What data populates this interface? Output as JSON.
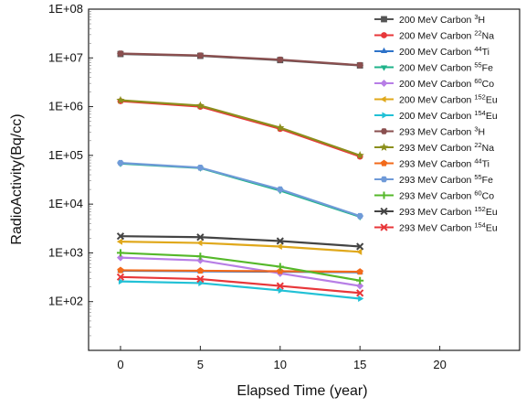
{
  "chart_data": {
    "type": "line",
    "xlabel": "Elapsed Time (year)",
    "ylabel": "RadioActivity(Bq/cc)",
    "x_ticks": [
      "0",
      "5",
      "10",
      "15",
      "20"
    ],
    "y_ticks": [
      "1E+02",
      "1E+03",
      "1E+04",
      "1E+05",
      "1E+06",
      "1E+07",
      "1E+08"
    ],
    "xlim": [
      -2,
      25
    ],
    "ylim": [
      10,
      100000000
    ],
    "y_scale": "log",
    "grid": false,
    "legend_position": "top-right",
    "x": [
      0,
      5,
      10,
      15
    ],
    "series": [
      {
        "name": "200 MeV Carbon ³H",
        "prefix": "200 MeV Carbon ",
        "sup": "3",
        "suffix": "H",
        "color": "#555555",
        "marker": "square",
        "values": [
          12000000,
          11000000,
          9000000,
          7000000
        ]
      },
      {
        "name": "200 MeV Carbon ²²Na",
        "prefix": "200 MeV Carbon ",
        "sup": "22",
        "suffix": "Na",
        "color": "#e8373a",
        "marker": "circle",
        "values": [
          1300000,
          1000000,
          350000,
          95000
        ]
      },
      {
        "name": "200 MeV Carbon ⁴⁴Ti",
        "prefix": "200 MeV Carbon ",
        "sup": "44",
        "suffix": "Ti",
        "color": "#2f73c9",
        "marker": "triangle-up",
        "values": [
          430,
          420,
          410,
          400
        ]
      },
      {
        "name": "200 MeV Carbon ⁵⁵Fe",
        "prefix": "200 MeV Carbon ",
        "sup": "55",
        "suffix": "Fe",
        "color": "#1fb38a",
        "marker": "triangle-down",
        "values": [
          68000,
          55000,
          19000,
          5500
        ]
      },
      {
        "name": "200 MeV Carbon ⁶⁰Co",
        "prefix": "200 MeV Carbon ",
        "sup": "60",
        "suffix": "Co",
        "color": "#b77ee6",
        "marker": "diamond",
        "values": [
          800,
          700,
          380,
          210
        ]
      },
      {
        "name": "200 MeV Carbon ¹⁵²Eu",
        "prefix": "200 MeV Carbon ",
        "sup": "152",
        "suffix": "Eu",
        "color": "#e0a81b",
        "marker": "triangle-left",
        "values": [
          1700,
          1600,
          1350,
          1050
        ]
      },
      {
        "name": "200 MeV Carbon ¹⁵⁴Eu",
        "prefix": "200 MeV Carbon ",
        "sup": "154",
        "suffix": "Eu",
        "color": "#22c1d6",
        "marker": "triangle-right",
        "values": [
          260,
          240,
          170,
          115
        ]
      },
      {
        "name": "293 MeV Carbon ³H",
        "prefix": "293 MeV Carbon ",
        "sup": "3",
        "suffix": "H",
        "color": "#8a4f4f",
        "marker": "hexagon",
        "values": [
          12300000,
          11200000,
          9200000,
          7100000
        ]
      },
      {
        "name": "293 MeV Carbon ²²Na",
        "prefix": "293 MeV Carbon ",
        "sup": "22",
        "suffix": "Na",
        "color": "#8b8f1c",
        "marker": "star",
        "values": [
          1350000,
          1050000,
          370000,
          100000
        ]
      },
      {
        "name": "293 MeV Carbon ⁴⁴Ti",
        "prefix": "293 MeV Carbon ",
        "sup": "44",
        "suffix": "Ti",
        "color": "#f26a1b",
        "marker": "pentagon",
        "values": [
          440,
          430,
          420,
          410
        ]
      },
      {
        "name": "293 MeV Carbon ⁵⁵Fe",
        "prefix": "293 MeV Carbon ",
        "sup": "55",
        "suffix": "Fe",
        "color": "#6f9ad8",
        "marker": "hexagon",
        "values": [
          70000,
          56000,
          20000,
          5700
        ]
      },
      {
        "name": "293 MeV Carbon ⁶⁰Co",
        "prefix": "293 MeV Carbon ",
        "sup": "60",
        "suffix": "Co",
        "color": "#55b82a",
        "marker": "plus",
        "values": [
          1000,
          850,
          520,
          270
        ]
      },
      {
        "name": "293 MeV Carbon ¹⁵²Eu",
        "prefix": "293 MeV Carbon ",
        "sup": "152",
        "suffix": "Eu",
        "color": "#444444",
        "marker": "x",
        "values": [
          2200,
          2100,
          1750,
          1350
        ]
      },
      {
        "name": "293 MeV Carbon ¹⁵⁴Eu",
        "prefix": "293 MeV Carbon ",
        "sup": "154",
        "suffix": "Eu",
        "color": "#e8373a",
        "marker": "x",
        "values": [
          320,
          290,
          210,
          150
        ]
      }
    ]
  }
}
